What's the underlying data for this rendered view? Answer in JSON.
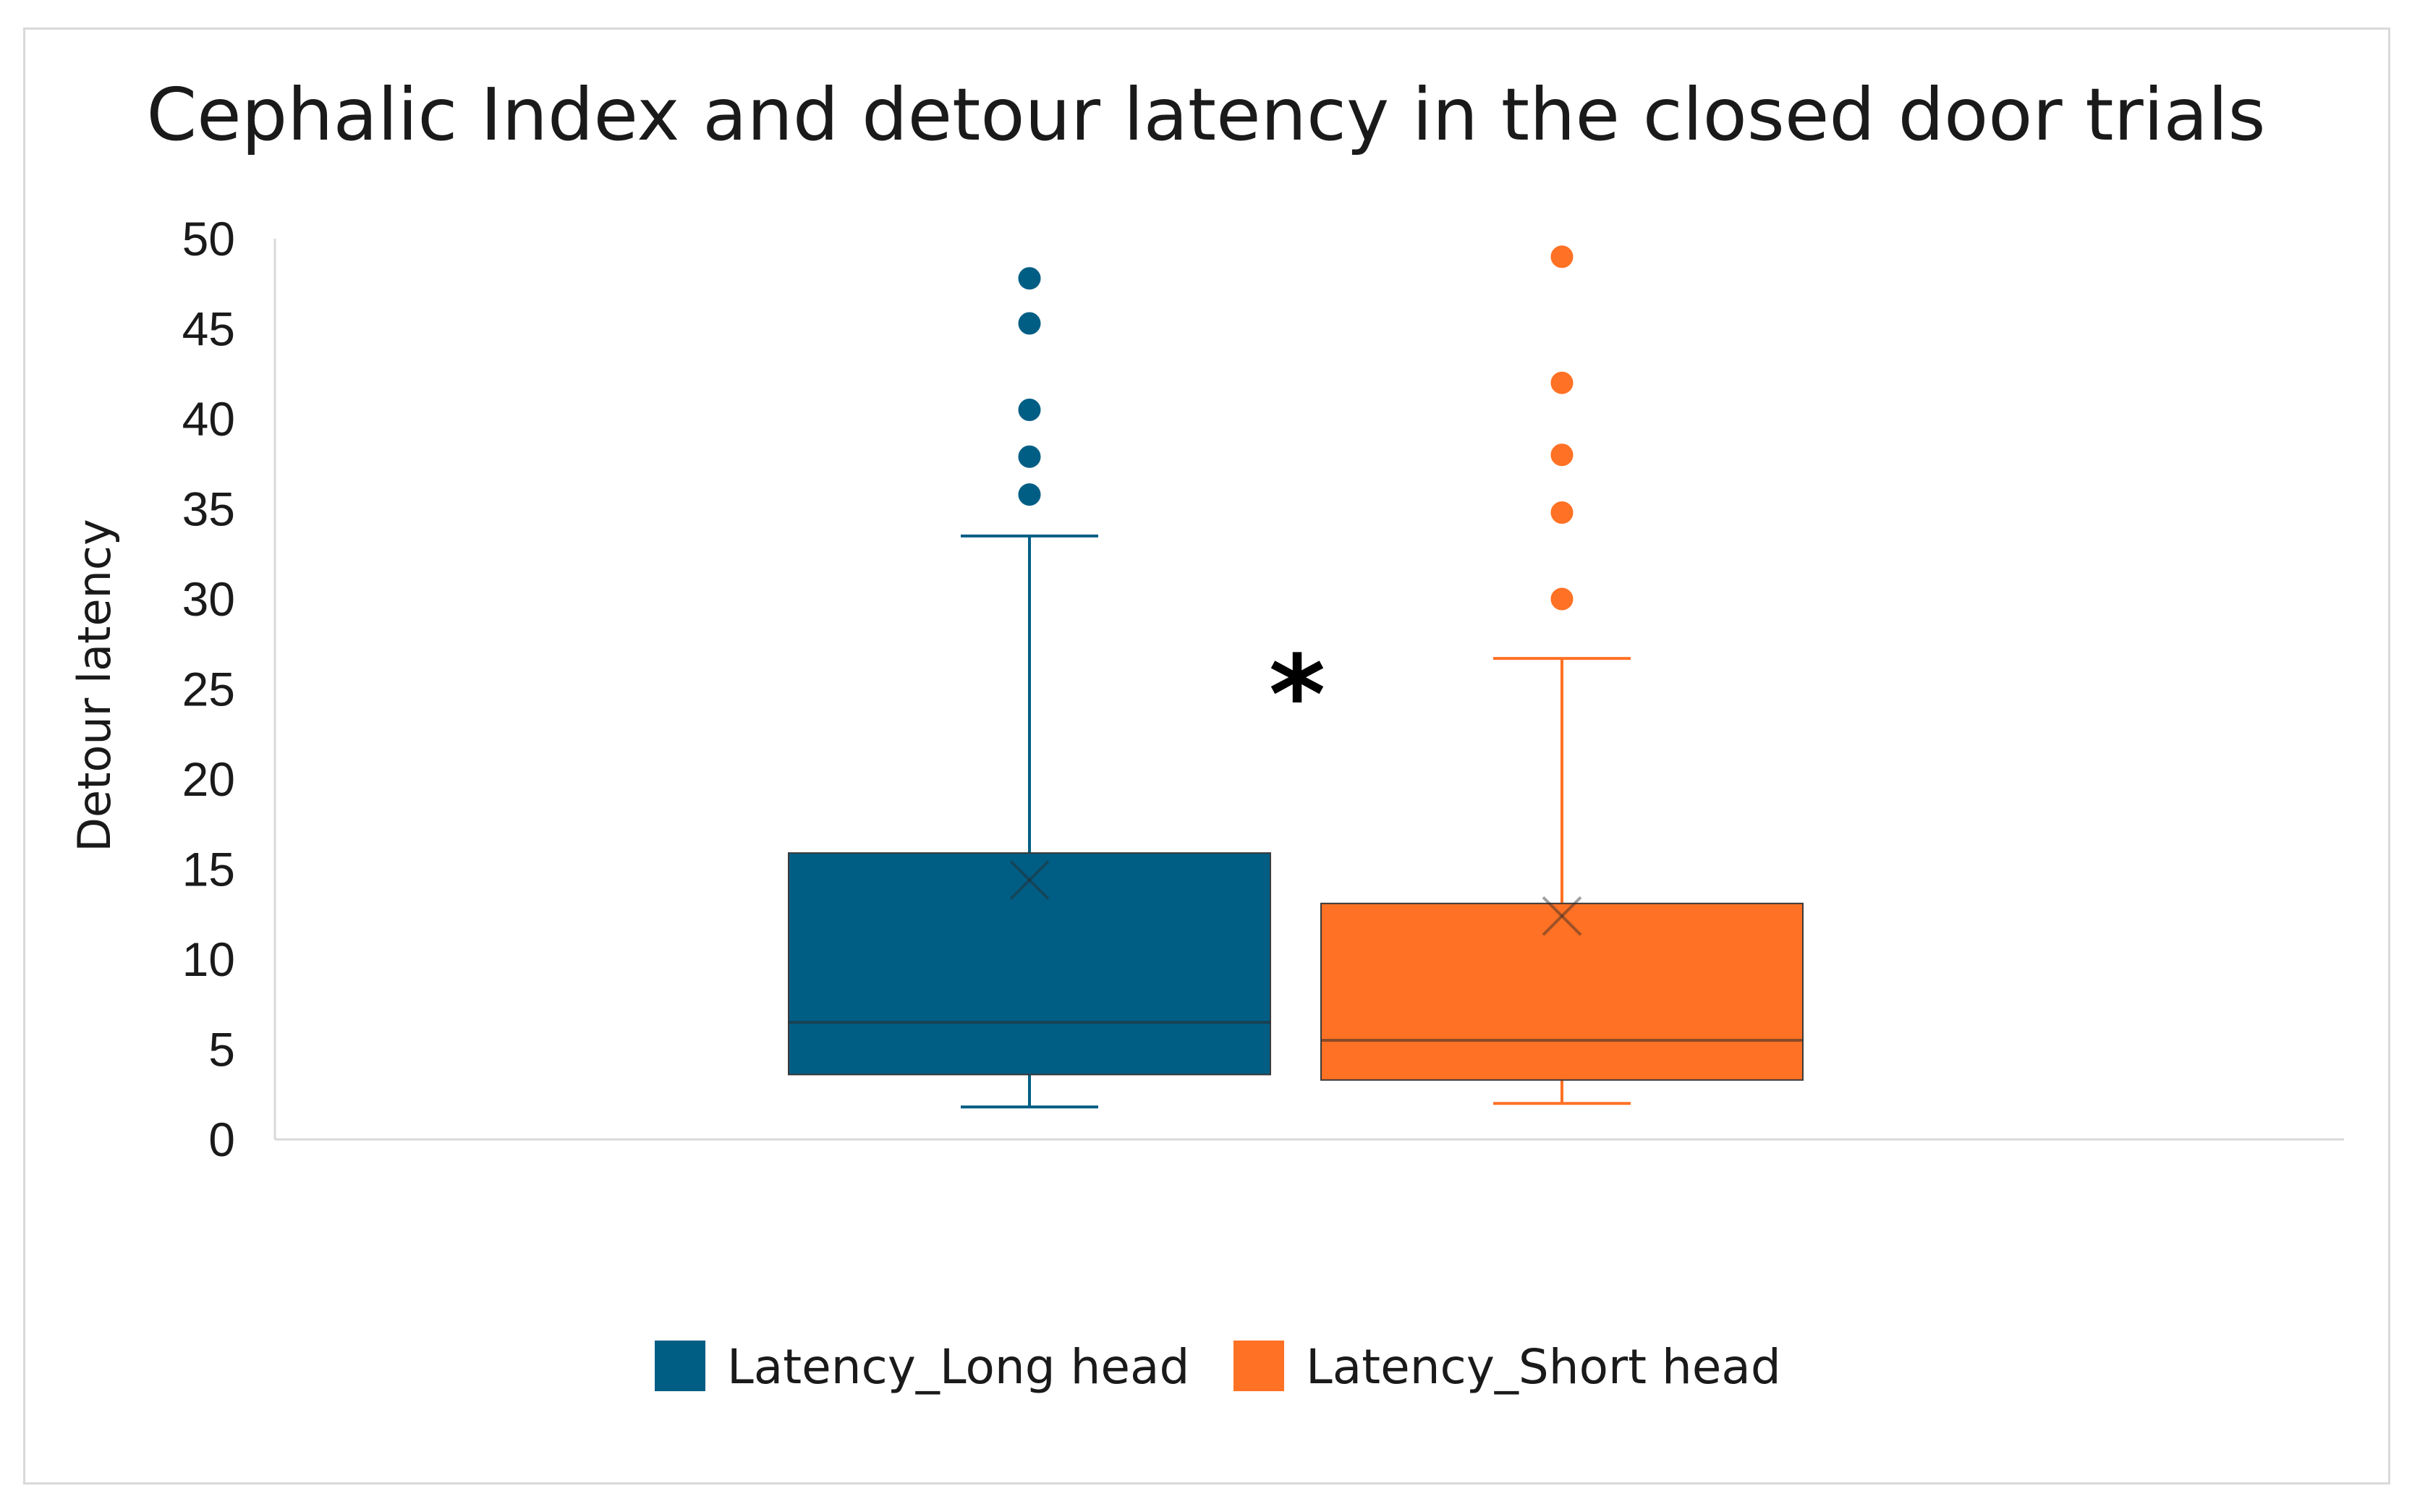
{
  "chart_data": {
    "type": "box",
    "title": "Cephalic Index and detour latency in the closed door trials",
    "ylabel": "Detour latency",
    "xlabel": "",
    "ylim": [
      0,
      50
    ],
    "yticks": [
      0,
      5,
      10,
      15,
      20,
      25,
      30,
      35,
      40,
      45,
      50
    ],
    "grid": false,
    "legend_position": "bottom",
    "annotation": "*",
    "series": [
      {
        "name": "Latency_Long head",
        "color": "#005e85",
        "whisker_low": 1.8,
        "q1": 3.6,
        "median": 6.5,
        "q3": 15.9,
        "whisker_high": 33.5,
        "mean": 14.4,
        "outliers": [
          35.8,
          37.9,
          40.5,
          45.3,
          47.8
        ]
      },
      {
        "name": "Latency_Short head",
        "color": "#ff7124",
        "whisker_low": 2.0,
        "q1": 3.3,
        "median": 5.5,
        "q3": 13.1,
        "whisker_high": 26.7,
        "mean": 12.4,
        "outliers": [
          30.0,
          34.8,
          38.0,
          42.0,
          49.0
        ]
      }
    ]
  }
}
